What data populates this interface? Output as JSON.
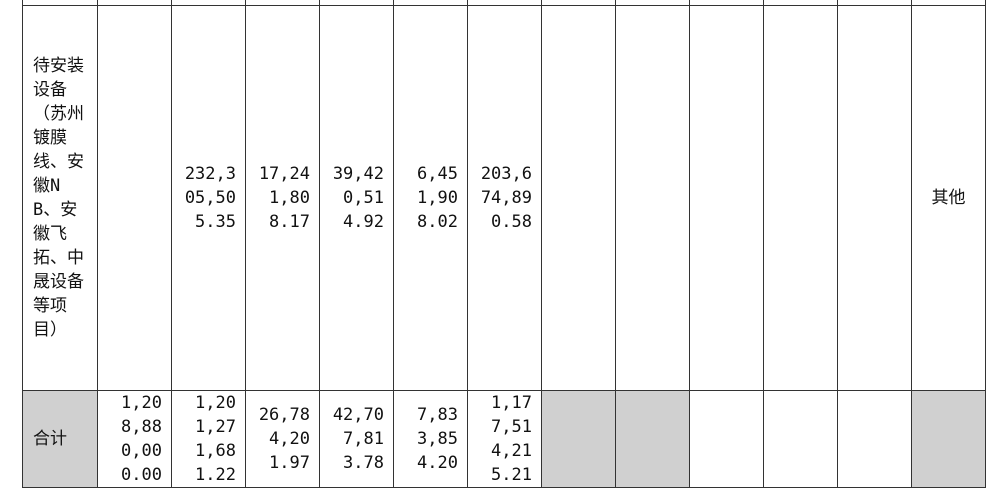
{
  "table": {
    "rows": [
      {
        "label": "待安装设备（苏州镀膜线、安徽NB、安徽飞拓、中晟设备等项目）",
        "cells": [
          "232,305,505.35",
          "17,241,808.17",
          "39,420,514.92",
          "6,451,908.02",
          "203,674,890.58"
        ],
        "note": "其他"
      },
      {
        "label": "合计",
        "cells": [
          "1,208,880,000.00",
          "1,201,271,681.22",
          "26,784,201.97",
          "42,707,813.78",
          "7,833,854.20",
          "1,177,514,215.21"
        ]
      }
    ]
  }
}
